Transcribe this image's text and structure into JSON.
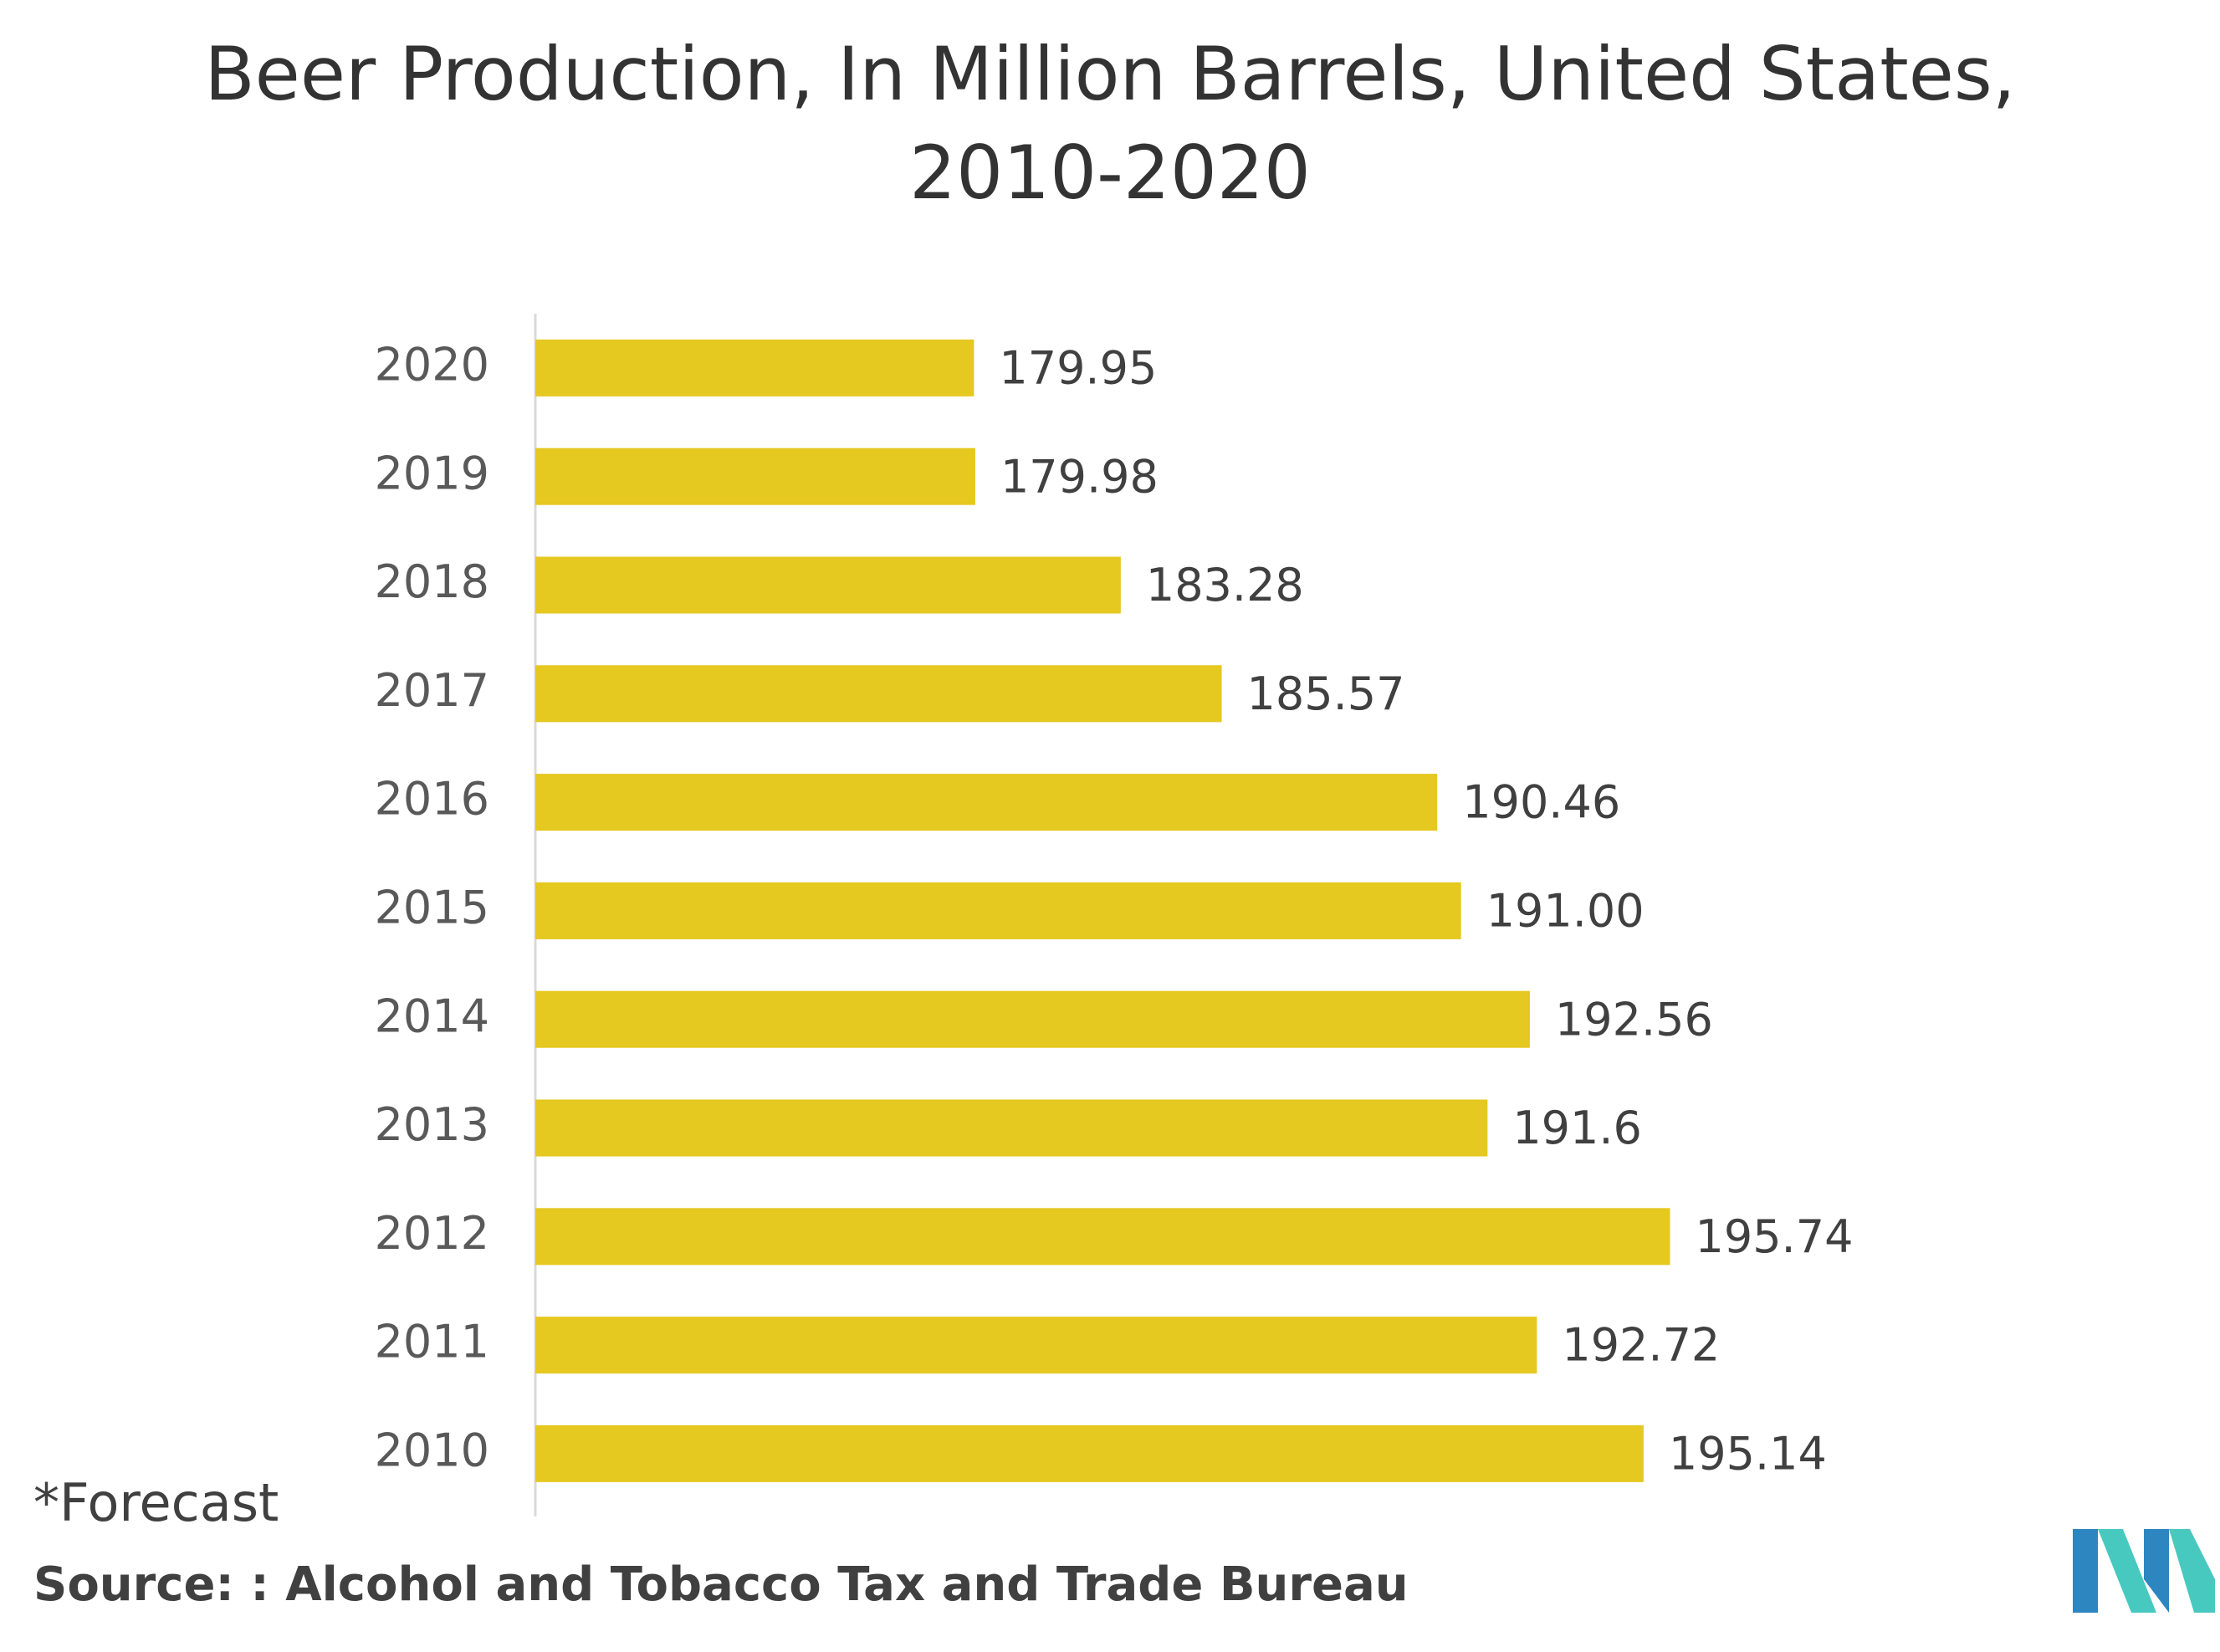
{
  "chart_data": {
    "type": "bar",
    "orientation": "horizontal",
    "title_lines": [
      "Beer Production, In Million Barrels, United States,",
      "2010-2020"
    ],
    "categories": [
      "2020",
      "2019",
      "2018",
      "2017",
      "2016",
      "2015",
      "2014",
      "2013",
      "2012",
      "2011",
      "2010"
    ],
    "values": [
      179.95,
      179.98,
      183.28,
      185.57,
      190.46,
      191.0,
      192.56,
      191.6,
      195.74,
      192.72,
      195.14
    ],
    "value_labels": [
      "179.95",
      "179.98",
      "183.28",
      "185.57",
      "190.46",
      "191.00",
      "192.56",
      "191.6",
      "195.74",
      "192.72",
      "195.14"
    ],
    "xlim": [
      170,
      198
    ],
    "xlabel": "",
    "ylabel": "",
    "grid": false,
    "legend": "none",
    "bar_color": "#E5C820",
    "axis_color": "#D9D9D9"
  },
  "footnote": "*Forecast",
  "source": "Source: : Alcohol and Tobacco Tax and Trade Bureau",
  "logo": {
    "icon": "mordor-intelligence-logo-icon",
    "colors": [
      "#2E86C1",
      "#48C9C0"
    ]
  }
}
